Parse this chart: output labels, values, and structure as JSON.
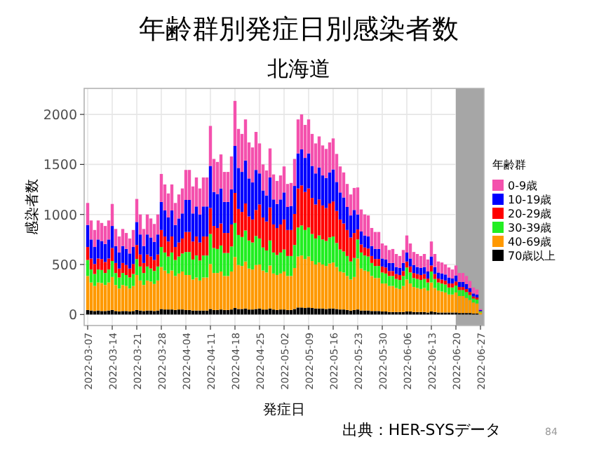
{
  "chart_data": {
    "type": "bar",
    "stacked": true,
    "title": "年齢群別発症日別感染者数",
    "subtitle": "北海道",
    "xlabel": "発症日",
    "ylabel": "感染者数",
    "legend_title": "年齢群",
    "legend": "right",
    "grid": true,
    "annotations": [
      "出典：HER-SYSデータ",
      "84"
    ],
    "xlim": [
      "2022-03-06",
      "2022-06-28"
    ],
    "xticks": [
      "2022-03-07",
      "2022-03-14",
      "2022-03-21",
      "2022-03-28",
      "2022-04-04",
      "2022-04-11",
      "2022-04-18",
      "2022-04-25",
      "2022-05-02",
      "2022-05-09",
      "2022-05-16",
      "2022-05-23",
      "2022-05-30",
      "2022-06-06",
      "2022-06-13",
      "2022-06-20",
      "2022-06-27"
    ],
    "ylim": [
      -110,
      2260
    ],
    "yticks": [
      0,
      500,
      1000,
      1500,
      2000
    ],
    "bands": [
      {
        "axis": "x",
        "from": "2022-06-20",
        "to": "2022-06-28",
        "color": "#a6a6a6"
      }
    ],
    "x": [
      "2022-03-07",
      "2022-03-08",
      "2022-03-09",
      "2022-03-10",
      "2022-03-11",
      "2022-03-12",
      "2022-03-13",
      "2022-03-14",
      "2022-03-15",
      "2022-03-16",
      "2022-03-17",
      "2022-03-18",
      "2022-03-19",
      "2022-03-20",
      "2022-03-21",
      "2022-03-22",
      "2022-03-23",
      "2022-03-24",
      "2022-03-25",
      "2022-03-26",
      "2022-03-27",
      "2022-03-28",
      "2022-03-29",
      "2022-03-30",
      "2022-03-31",
      "2022-04-01",
      "2022-04-02",
      "2022-04-03",
      "2022-04-04",
      "2022-04-05",
      "2022-04-06",
      "2022-04-07",
      "2022-04-08",
      "2022-04-09",
      "2022-04-10",
      "2022-04-11",
      "2022-04-12",
      "2022-04-13",
      "2022-04-14",
      "2022-04-15",
      "2022-04-16",
      "2022-04-17",
      "2022-04-18",
      "2022-04-19",
      "2022-04-20",
      "2022-04-21",
      "2022-04-22",
      "2022-04-23",
      "2022-04-24",
      "2022-04-25",
      "2022-04-26",
      "2022-04-27",
      "2022-04-28",
      "2022-04-29",
      "2022-04-30",
      "2022-05-01",
      "2022-05-02",
      "2022-05-03",
      "2022-05-04",
      "2022-05-05",
      "2022-05-06",
      "2022-05-07",
      "2022-05-08",
      "2022-05-09",
      "2022-05-10",
      "2022-05-11",
      "2022-05-12",
      "2022-05-13",
      "2022-05-14",
      "2022-05-15",
      "2022-05-16",
      "2022-05-17",
      "2022-05-18",
      "2022-05-19",
      "2022-05-20",
      "2022-05-21",
      "2022-05-22",
      "2022-05-23",
      "2022-05-24",
      "2022-05-25",
      "2022-05-26",
      "2022-05-27",
      "2022-05-28",
      "2022-05-29",
      "2022-05-30",
      "2022-05-31",
      "2022-06-01",
      "2022-06-02",
      "2022-06-03",
      "2022-06-04",
      "2022-06-05",
      "2022-06-06",
      "2022-06-07",
      "2022-06-08",
      "2022-06-09",
      "2022-06-10",
      "2022-06-11",
      "2022-06-12",
      "2022-06-13",
      "2022-06-14",
      "2022-06-15",
      "2022-06-16",
      "2022-06-17",
      "2022-06-18",
      "2022-06-19",
      "2022-06-20",
      "2022-06-21",
      "2022-06-22",
      "2022-06-23",
      "2022-06-24",
      "2022-06-25",
      "2022-06-26",
      "2022-06-27"
    ],
    "series": [
      {
        "name": "70歳以上",
        "color": "#000000",
        "values": [
          45,
          40,
          35,
          40,
          35,
          35,
          40,
          45,
          35,
          30,
          35,
          35,
          30,
          35,
          45,
          40,
          35,
          40,
          40,
          35,
          40,
          55,
          50,
          50,
          50,
          45,
          50,
          50,
          45,
          45,
          40,
          40,
          40,
          40,
          40,
          55,
          45,
          45,
          50,
          45,
          45,
          50,
          65,
          55,
          55,
          60,
          50,
          50,
          55,
          60,
          50,
          50,
          60,
          50,
          45,
          50,
          50,
          45,
          45,
          55,
          70,
          70,
          65,
          70,
          65,
          60,
          60,
          60,
          55,
          60,
          60,
          55,
          50,
          50,
          45,
          40,
          45,
          50,
          40,
          40,
          40,
          35,
          35,
          35,
          30,
          30,
          25,
          25,
          25,
          25,
          25,
          30,
          30,
          25,
          25,
          25,
          25,
          20,
          30,
          25,
          20,
          20,
          20,
          20,
          20,
          20,
          15,
          15,
          15,
          15,
          10,
          10,
          null
        ]
      },
      {
        "name": "40-69歳",
        "color": "#ff9900",
        "values": [
          340,
          280,
          250,
          280,
          280,
          260,
          280,
          330,
          260,
          230,
          260,
          250,
          230,
          250,
          350,
          300,
          260,
          300,
          290,
          270,
          300,
          420,
          390,
          360,
          390,
          340,
          360,
          380,
          350,
          350,
          310,
          330,
          300,
          330,
          330,
          450,
          370,
          370,
          380,
          340,
          340,
          380,
          510,
          440,
          430,
          470,
          410,
          400,
          440,
          440,
          390,
          370,
          430,
          360,
          350,
          360,
          380,
          340,
          340,
          410,
          510,
          520,
          490,
          510,
          470,
          440,
          460,
          440,
          430,
          450,
          460,
          420,
          380,
          370,
          340,
          310,
          330,
          510,
          420,
          400,
          390,
          350,
          330,
          330,
          280,
          280,
          260,
          260,
          240,
          230,
          260,
          320,
          280,
          250,
          240,
          230,
          240,
          220,
          290,
          240,
          220,
          210,
          200,
          180,
          180,
          200,
          170,
          170,
          150,
          130,
          110,
          100,
          20
        ]
      },
      {
        "name": "30-39歳",
        "color": "#22ee22",
        "values": [
          160,
          130,
          120,
          130,
          130,
          120,
          130,
          160,
          120,
          110,
          120,
          110,
          110,
          120,
          160,
          140,
          120,
          140,
          130,
          130,
          140,
          200,
          180,
          170,
          180,
          160,
          170,
          180,
          230,
          230,
          200,
          220,
          200,
          220,
          220,
          300,
          250,
          240,
          260,
          230,
          230,
          250,
          340,
          300,
          290,
          310,
          280,
          270,
          290,
          260,
          230,
          220,
          250,
          210,
          200,
          210,
          220,
          200,
          200,
          230,
          290,
          300,
          290,
          290,
          270,
          260,
          270,
          250,
          250,
          260,
          260,
          240,
          220,
          210,
          200,
          180,
          190,
          190,
          160,
          150,
          150,
          130,
          120,
          120,
          110,
          100,
          100,
          100,
          90,
          90,
          100,
          120,
          110,
          90,
          90,
          90,
          90,
          80,
          110,
          90,
          80,
          80,
          80,
          70,
          70,
          70,
          60,
          60,
          60,
          50,
          40,
          40,
          10
        ]
      },
      {
        "name": "20-29歳",
        "color": "#ff0000",
        "values": [
          130,
          110,
          100,
          110,
          110,
          110,
          110,
          130,
          100,
          90,
          100,
          100,
          90,
          100,
          140,
          120,
          100,
          120,
          120,
          110,
          120,
          170,
          160,
          150,
          160,
          130,
          140,
          150,
          200,
          200,
          180,
          190,
          180,
          190,
          190,
          260,
          220,
          210,
          220,
          200,
          200,
          220,
          300,
          260,
          250,
          270,
          240,
          230,
          260,
          340,
          300,
          290,
          330,
          280,
          270,
          280,
          300,
          260,
          260,
          310,
          390,
          400,
          380,
          390,
          360,
          340,
          360,
          340,
          330,
          340,
          350,
          320,
          300,
          280,
          260,
          240,
          250,
          100,
          80,
          80,
          80,
          70,
          70,
          70,
          60,
          60,
          50,
          50,
          50,
          50,
          50,
          60,
          60,
          50,
          50,
          50,
          50,
          40,
          60,
          50,
          40,
          40,
          40,
          40,
          40,
          40,
          30,
          30,
          30,
          30,
          20,
          20,
          5
        ]
      },
      {
        "name": "10-19歳",
        "color": "#0000ff",
        "values": [
          220,
          190,
          170,
          190,
          180,
          180,
          190,
          220,
          170,
          160,
          170,
          160,
          150,
          170,
          230,
          200,
          170,
          200,
          190,
          180,
          200,
          280,
          260,
          240,
          260,
          220,
          240,
          250,
          320,
          320,
          280,
          300,
          280,
          300,
          300,
          420,
          340,
          340,
          350,
          310,
          310,
          350,
          470,
          410,
          400,
          430,
          380,
          370,
          400,
          310,
          270,
          260,
          300,
          250,
          240,
          250,
          270,
          230,
          240,
          280,
          350,
          360,
          340,
          350,
          320,
          310,
          320,
          300,
          300,
          310,
          320,
          290,
          270,
          260,
          230,
          220,
          230,
          150,
          130,
          120,
          120,
          100,
          100,
          100,
          80,
          80,
          80,
          80,
          70,
          70,
          80,
          90,
          80,
          80,
          70,
          70,
          70,
          70,
          90,
          70,
          60,
          60,
          60,
          60,
          50,
          60,
          50,
          50,
          50,
          40,
          30,
          30,
          10
        ]
      },
      {
        "name": "0-9歳",
        "color": "#f451ad",
        "values": [
          220,
          190,
          170,
          190,
          180,
          180,
          190,
          220,
          170,
          160,
          170,
          160,
          150,
          170,
          230,
          200,
          170,
          200,
          190,
          180,
          200,
          280,
          260,
          240,
          260,
          220,
          240,
          250,
          300,
          300,
          270,
          290,
          260,
          290,
          290,
          400,
          330,
          320,
          340,
          300,
          300,
          330,
          450,
          390,
          380,
          410,
          360,
          350,
          380,
          300,
          260,
          250,
          290,
          250,
          230,
          240,
          260,
          230,
          230,
          270,
          340,
          350,
          330,
          340,
          320,
          300,
          310,
          300,
          290,
          300,
          310,
          280,
          260,
          250,
          230,
          210,
          220,
          270,
          220,
          210,
          210,
          180,
          170,
          170,
          150,
          140,
          130,
          140,
          130,
          120,
          130,
          170,
          150,
          130,
          130,
          120,
          130,
          120,
          150,
          130,
          110,
          110,
          100,
          100,
          90,
          100,
          90,
          90,
          80,
          70,
          60,
          50,
          10
        ]
      }
    ]
  }
}
